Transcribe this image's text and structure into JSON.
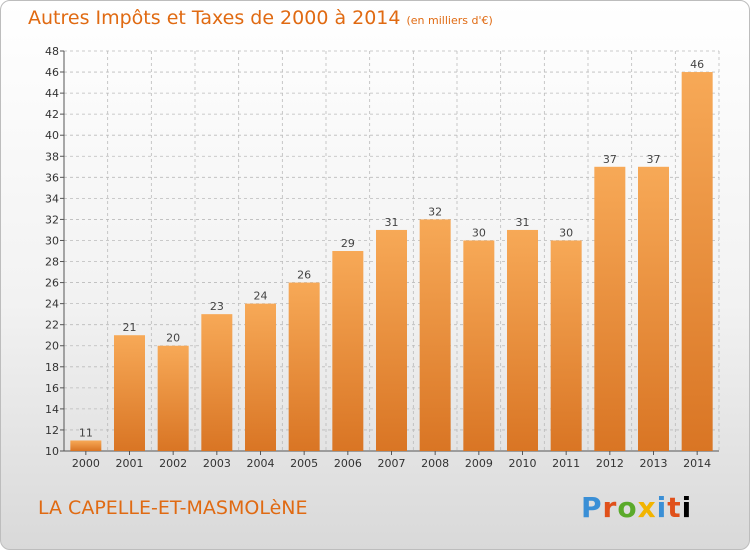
{
  "header": {
    "title": "Autres Impôts et Taxes de 2000 à 2014",
    "unit": "(en milliers d'€)"
  },
  "footer": {
    "commune": "LA CAPELLE-ET-MASMOLèNE",
    "brand": "Proxiti"
  },
  "colors": {
    "accent": "#e06a12",
    "bar_light": "#f6a85a",
    "bar_dark": "#d97a28",
    "grid": "#bbbbbb"
  },
  "chart_data": {
    "type": "bar",
    "categories": [
      "2000",
      "2001",
      "2002",
      "2003",
      "2004",
      "2005",
      "2006",
      "2007",
      "2008",
      "2009",
      "2010",
      "2011",
      "2012",
      "2013",
      "2014"
    ],
    "values": [
      11,
      21,
      20,
      23,
      24,
      26,
      29,
      31,
      32,
      30,
      31,
      30,
      37,
      37,
      46
    ],
    "title": "Autres Impôts et Taxes de 2000 à 2014",
    "subtitle": "(en milliers d'€)",
    "xlabel": "",
    "ylabel": "",
    "ylim": [
      10,
      48
    ],
    "yticks": [
      10,
      12,
      14,
      16,
      18,
      20,
      22,
      24,
      26,
      28,
      30,
      32,
      34,
      36,
      38,
      40,
      42,
      44,
      46,
      48
    ],
    "grid": true,
    "grid_style": "dashed",
    "data_labels": true
  }
}
